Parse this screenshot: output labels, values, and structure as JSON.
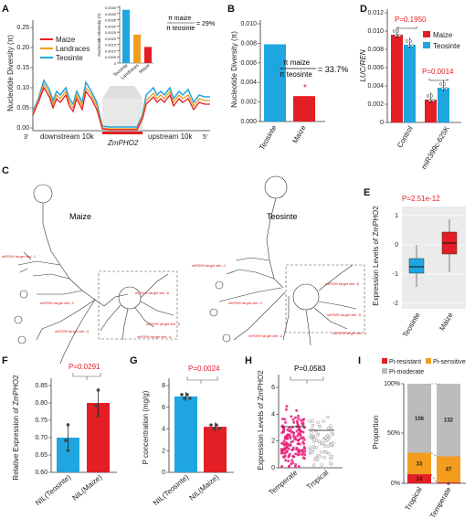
{
  "colors": {
    "maize": "#e31e24",
    "landraces": "#f39c1e",
    "teosinte": "#1fa6e0",
    "pval": "#e31e24",
    "grey": "#bcbcbc"
  },
  "panels": {
    "A": "A",
    "B": "B",
    "C": "C",
    "D": "D",
    "E": "E",
    "F": "F",
    "G": "G",
    "H": "H",
    "I": "I"
  },
  "panelA": {
    "ylabel": "Nucleotide Diversity (π)",
    "yticks": [
      "0.00",
      "0.05",
      "0.10",
      "0.15",
      "0.20",
      "0.25"
    ],
    "legend": [
      "Maize",
      "Landraces",
      "Teosinte"
    ],
    "x_left": "3'",
    "x_right": "5'",
    "downstream": "downstream 10k",
    "upstream": "upstream 10k",
    "gene": "ZmPHO2",
    "inset": {
      "ylabel": "Nucleotide Diversity (π)",
      "yticks": [
        "0",
        "0.0005",
        "0.0010",
        "0.0015",
        "0.0020",
        "0.0025",
        "0.0030",
        "0.0035",
        "0.0040",
        "0.0045"
      ],
      "categories": [
        "Teosinte",
        "Landraces",
        "Maize"
      ],
      "values": [
        0.0043,
        0.0023,
        0.0013
      ],
      "ratio_num": "π maize",
      "ratio_den": "π teosinte",
      "ratio_val": "= 29%"
    }
  },
  "panelB": {
    "ylabel": "Nucleotide Diversity (π)",
    "yticks": [
      "0.000",
      "0.002",
      "0.004",
      "0.006",
      "0.008",
      "0.010"
    ],
    "categories": [
      "Teosinte",
      "Maize"
    ],
    "values": [
      0.0079,
      0.0026
    ],
    "ratio_num": "π maize",
    "ratio_den": "π teosinte",
    "ratio_val": "= 33.7%",
    "star": "*"
  },
  "panelC": {
    "maize_title": "Maize",
    "teosinte_title": "Teosinte",
    "maize_sites": [
      "miR399 target site -1",
      "miR399 target site -2",
      "miR399 target site -3",
      "miR399 target site -4",
      "miR399 target site -5",
      "miR399 target site -6"
    ],
    "teo_sites": [
      "miR399 target site -1",
      "miR399 target site -2",
      "miR399 target site -3",
      "miR399 target site -4",
      "miR399 target site -5",
      "miR399 target site -6"
    ]
  },
  "panelD": {
    "ylabel": "LUC/REN",
    "yticks": [
      "0",
      "0.002",
      "0.004",
      "0.006",
      "0.008",
      "0.010",
      "0.012"
    ],
    "legend": [
      "Maize",
      "Teosinte"
    ],
    "categories": [
      "Control",
      "miR399c-625K"
    ],
    "p1": "P=0.1950",
    "p2": "P=0.0014",
    "maize": [
      0.0096,
      0.0025
    ],
    "teosinte": [
      0.0085,
      0.0038
    ]
  },
  "panelE": {
    "ylabel": "Expression Levels of ZmPHO2",
    "pval": "P=2.51e-12",
    "yticks": [
      "1",
      "0",
      "-1",
      "-2"
    ],
    "categories": [
      "Teosinte",
      "Maize"
    ]
  },
  "panelF": {
    "ylabel": "Relative Expression of ZmPHO2",
    "pval": "P=0.0291",
    "yticks": [
      "0.60",
      "0.65",
      "0.70",
      "0.75",
      "0.80",
      "0.85"
    ],
    "categories": [
      "NIL(Teosinte)",
      "NIL(Maize)"
    ],
    "values": [
      0.7,
      0.8
    ]
  },
  "panelG": {
    "ylabel": "P concentration (mg/g)",
    "pval": "P=0.0024",
    "yticks": [
      "0",
      "2",
      "4",
      "6",
      "8"
    ],
    "categories": [
      "NIL(Teosinte)",
      "NIL(Maize)"
    ],
    "values": [
      7.0,
      4.2
    ]
  },
  "panelH": {
    "ylabel": "Expression Levels of ZmPHO2",
    "pval": "P=0.0583",
    "yticks": [
      "0",
      "2",
      "4",
      "6"
    ],
    "categories": [
      "Temperate",
      "Tropical"
    ]
  },
  "panelI": {
    "ylabel": "Proportion",
    "yticks": [
      "0%",
      "50%",
      "100%"
    ],
    "legend": [
      "Pi-resistant",
      "Pi-sensitive",
      "Pi-moderate"
    ],
    "categories": [
      "Tropical",
      "Temperate"
    ],
    "tropical": {
      "resistant": 14,
      "sensitive": 33,
      "moderate": 106
    },
    "temperate": {
      "resistant": 2,
      "sensitive": 47,
      "moderate": 132
    }
  },
  "chart_data": [
    {
      "type": "bar",
      "title": "",
      "categories": [
        "Teosinte",
        "Maize"
      ],
      "values": [
        0.0079,
        0.0026
      ],
      "ylabel": "Nucleotide Diversity (π)",
      "ylim": [
        0,
        0.01
      ]
    },
    {
      "type": "bar",
      "title": "",
      "categories": [
        "Teosinte",
        "Landraces",
        "Maize"
      ],
      "values": [
        0.0043,
        0.0023,
        0.0013
      ],
      "ylim": [
        0,
        0.0045
      ]
    },
    {
      "type": "bar",
      "title": "",
      "categories": [
        "Control",
        "miR399c-625K"
      ],
      "series": [
        {
          "name": "Maize",
          "values": [
            0.0096,
            0.0025
          ]
        },
        {
          "name": "Teosinte",
          "values": [
            0.0085,
            0.0038
          ]
        }
      ],
      "ylabel": "LUC/REN",
      "ylim": [
        0,
        0.012
      ]
    },
    {
      "type": "bar",
      "title": "",
      "categories": [
        "NIL(Teosinte)",
        "NIL(Maize)"
      ],
      "values": [
        0.7,
        0.8
      ],
      "ylabel": "Relative Expression of ZmPHO2",
      "ylim": [
        0.6,
        0.85
      ]
    },
    {
      "type": "bar",
      "title": "",
      "categories": [
        "NIL(Teosinte)",
        "NIL(Maize)"
      ],
      "values": [
        7.0,
        4.2
      ],
      "ylabel": "P concentration (mg/g)",
      "ylim": [
        0,
        8
      ]
    },
    {
      "type": "bar",
      "title": "",
      "categories": [
        "Tropical",
        "Temperate"
      ],
      "series": [
        {
          "name": "Pi-resistant",
          "values": [
            14,
            2
          ]
        },
        {
          "name": "Pi-sensitive",
          "values": [
            33,
            47
          ]
        },
        {
          "name": "Pi-moderate",
          "values": [
            106,
            132
          ]
        }
      ],
      "ylabel": "Proportion"
    }
  ]
}
